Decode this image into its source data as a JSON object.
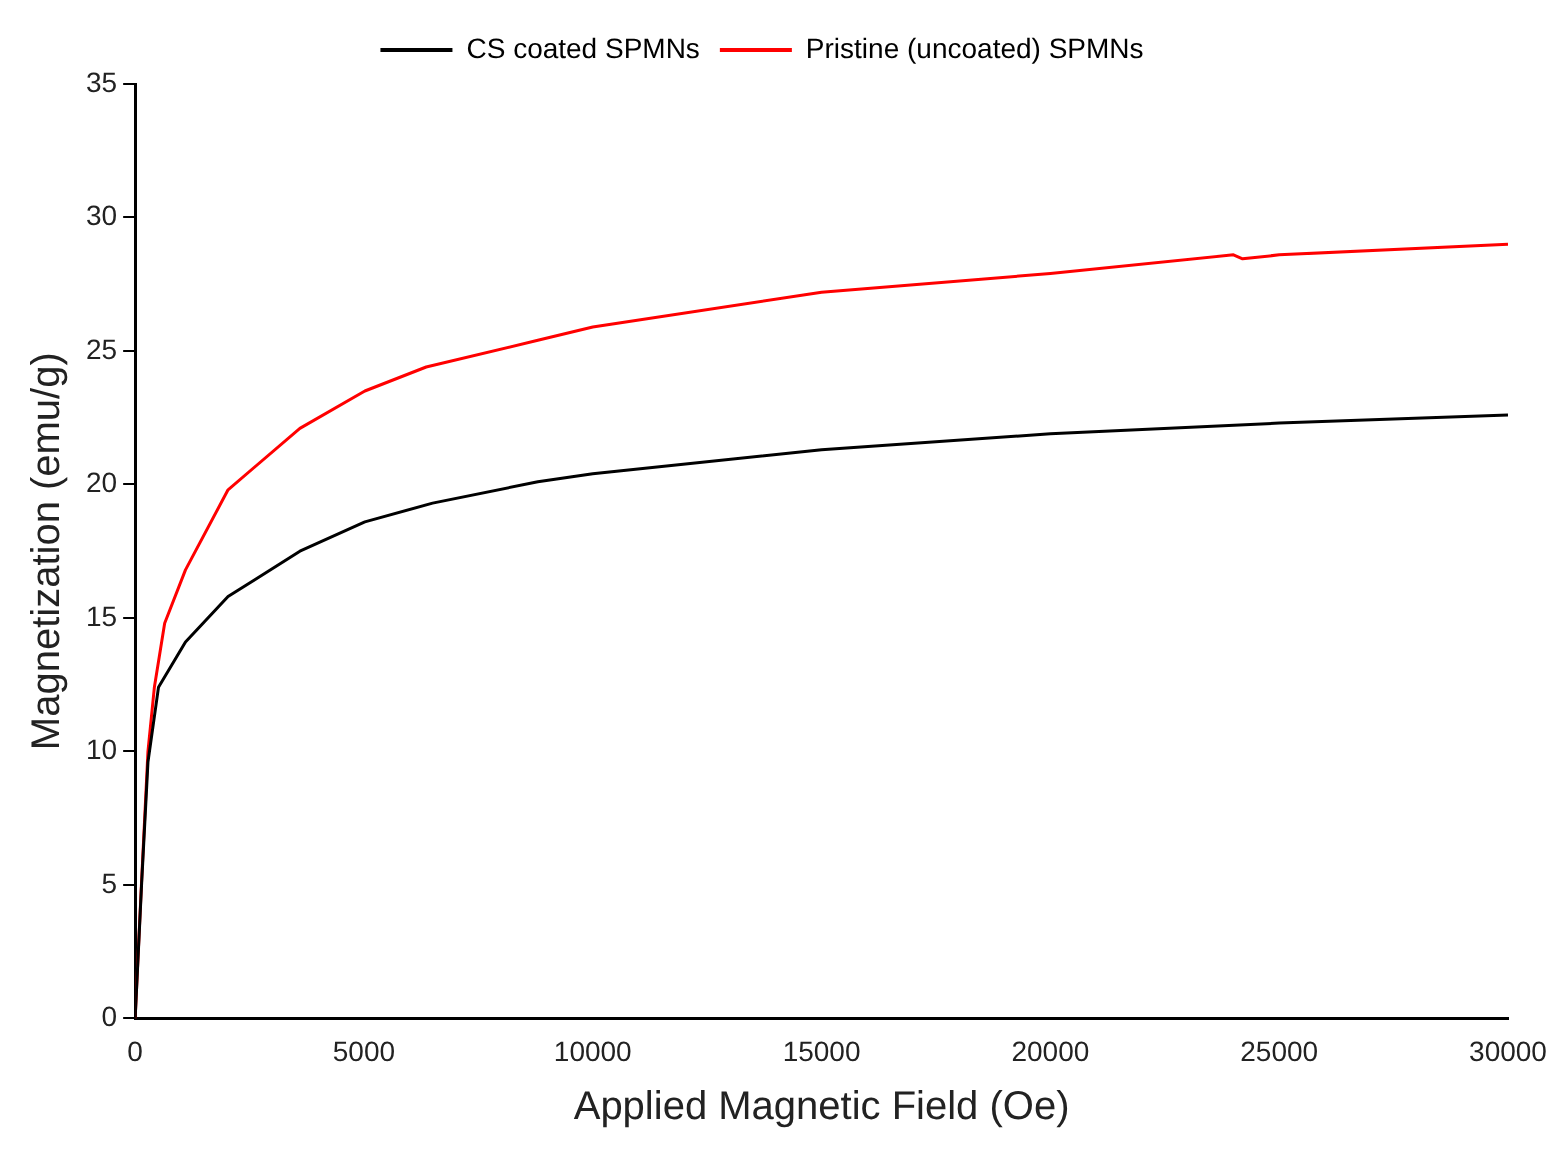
{
  "chart_data": {
    "type": "line",
    "xlabel": "Applied Magnetic Field (Oe)",
    "ylabel": "Magnetization (emu/g)",
    "xlim": [
      0,
      30000
    ],
    "xticks": [
      0,
      5000,
      10000,
      15000,
      20000,
      25000,
      30000
    ],
    "ylim": [
      0,
      35
    ],
    "yticks": [
      0,
      5,
      10,
      15,
      20,
      25,
      30,
      35
    ],
    "grid": false,
    "legend": "top",
    "marker": "none",
    "line_style": "solid",
    "series": [
      {
        "name": "CS coated SPMNs",
        "color": "#000000",
        "x": [
          0,
          140,
          280,
          510,
          1100,
          2030,
          3600,
          5020,
          6500,
          8800,
          10000,
          15000,
          20000,
          25000,
          30000
        ],
        "values": [
          0,
          5.0,
          9.6,
          12.4,
          14.1,
          15.8,
          17.5,
          18.6,
          19.3,
          20.1,
          20.4,
          21.3,
          21.9,
          22.3,
          22.6
        ]
      },
      {
        "name": "Pristine (uncoated) SPMNs",
        "color": "#ff0000",
        "x": [
          0,
          140,
          280,
          420,
          645,
          1100,
          2030,
          3600,
          5020,
          6360,
          8800,
          10000,
          15000,
          20000,
          24000,
          24200,
          25000,
          30000
        ],
        "values": [
          0,
          5.1,
          10.0,
          12.4,
          14.8,
          16.8,
          19.8,
          22.1,
          23.5,
          24.4,
          25.4,
          25.9,
          27.2,
          27.9,
          28.6,
          28.45,
          28.6,
          29.0
        ]
      }
    ]
  }
}
